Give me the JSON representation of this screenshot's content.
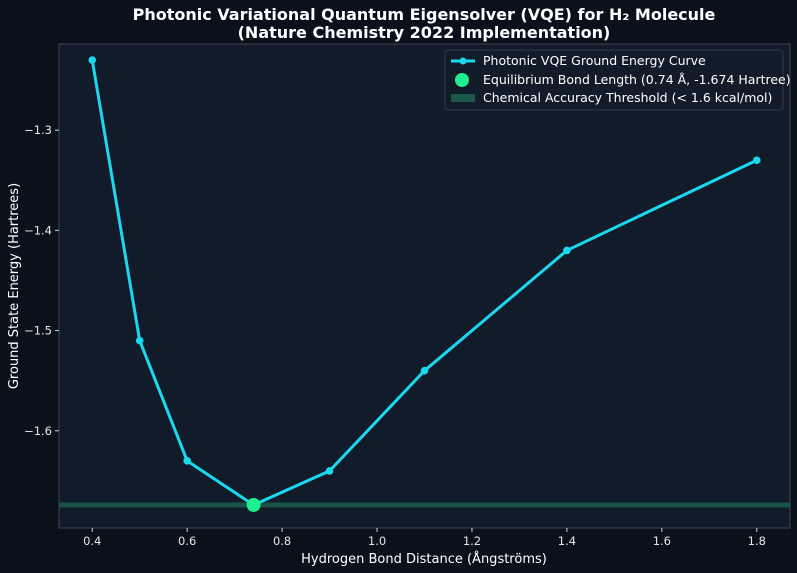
{
  "chart_data": {
    "type": "line",
    "title": "Photonic Variational Quantum Eigensolver (VQE) for H₂ Molecule",
    "subtitle": "(Nature Chemistry 2022 Implementation)",
    "xlabel": "Hydrogen Bond Distance (Ångströms)",
    "ylabel": "Ground State Energy (Hartrees)",
    "xlim": [
      0.33,
      1.87
    ],
    "ylim": [
      -1.697,
      -1.214
    ],
    "xticks": [
      0.4,
      0.6,
      0.8,
      1.0,
      1.2,
      1.4,
      1.6,
      1.8
    ],
    "xtick_labels": [
      "0.4",
      "0.6",
      "0.8",
      "1.0",
      "1.2",
      "1.4",
      "1.6",
      "1.8"
    ],
    "yticks": [
      -1.3,
      -1.4,
      -1.5,
      -1.6
    ],
    "ytick_labels": [
      "−1.3",
      "−1.4",
      "−1.5",
      "−1.6"
    ],
    "grid": false,
    "legend_position": "top-right",
    "series": [
      {
        "name": "Photonic VQE Ground Energy Curve",
        "color": "#1ad8ee",
        "x": [
          0.4,
          0.5,
          0.6,
          0.74,
          0.9,
          1.1,
          1.4,
          1.8
        ],
        "y": [
          -1.23,
          -1.51,
          -1.63,
          -1.674,
          -1.64,
          -1.54,
          -1.42,
          -1.33
        ]
      }
    ],
    "highlight_point": {
      "name": "Equilibrium Bond Length (0.74 Å, -1.674 Hartree)",
      "color": "#1ef08f",
      "x": 0.74,
      "y": -1.674
    },
    "threshold_band": {
      "name": "Chemical Accuracy Threshold (< 1.6 kcal/mol)",
      "color": "#1a5a4a",
      "y_low": -1.6765,
      "y_high": -1.6715
    }
  },
  "colors": {
    "background": "#0b111b",
    "plot_background": "#121b2a",
    "axis": "#3a4556",
    "text": "#ffffff"
  }
}
